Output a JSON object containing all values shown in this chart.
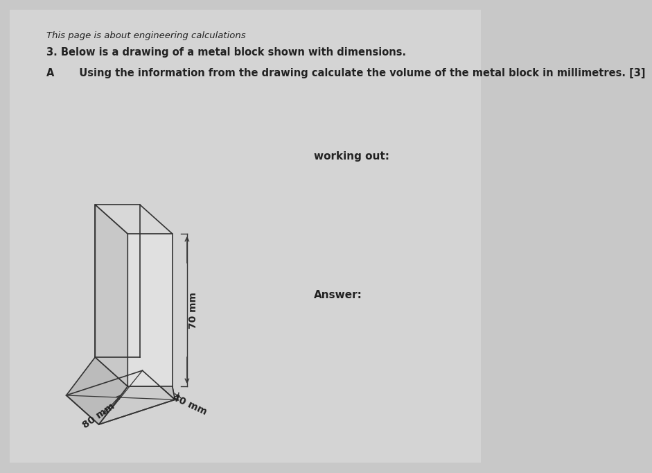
{
  "bg_color": "#c8c8c8",
  "paper_color": "#d4d4d4",
  "line_color": "#333333",
  "text_color": "#222222",
  "title_text": "This page is about engineering calculations",
  "q3_text": "3. Below is a drawing of a metal block shown with dimensions.",
  "qa_text": "A       Using the information from the drawing calculate the volume of the metal block in millimetres. [3]",
  "working_out_text": "working out:",
  "answer_text": "Answer:",
  "dim1": "80 mm",
  "dim2": "40 mm",
  "dim3": "70 mm",
  "face_front_color": "#e0e0e0",
  "face_left_color": "#c8c8c8",
  "face_top_color": "#d8d8d8",
  "base_front_color": "#cccccc",
  "base_left_color": "#bbbbbb",
  "base_right_color": "#c4c4c4"
}
